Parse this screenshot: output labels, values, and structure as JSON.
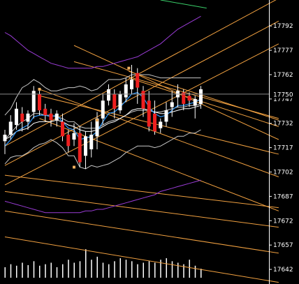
{
  "colors": {
    "background": "#000000",
    "bull_body": "#ffffff",
    "bear_body": "#ee1f1f",
    "wick": "#ffffff",
    "fib_channel": "#f0a040",
    "bollinger": "#c8c8c8",
    "ema_fast": "#2f9bff",
    "ema_slow": "#ffffff",
    "envelope": "#9a3cd6",
    "envelope_top": "#3ad06a",
    "volume": "#ffffff",
    "axis_text": "#ffffff",
    "price_line": "#8a8a8a",
    "anchor_marker": "#f0b060"
  },
  "chart_data": {
    "type": "candlestick",
    "title": "",
    "xlabel": "",
    "ylabel": "",
    "ylim": [
      17636,
      17808
    ],
    "y_ticks": [
      17792,
      17777,
      17762,
      17747,
      17732,
      17717,
      17702,
      17687,
      17672,
      17657,
      17642
    ],
    "current_price": 17750,
    "grid": false,
    "candles": [
      {
        "o": 17721,
        "h": 17728,
        "l": 17713,
        "c": 17725
      },
      {
        "o": 17725,
        "h": 17737,
        "l": 17722,
        "c": 17733
      },
      {
        "o": 17731,
        "h": 17745,
        "l": 17728,
        "c": 17741
      },
      {
        "o": 17738,
        "h": 17742,
        "l": 17727,
        "c": 17733
      },
      {
        "o": 17733,
        "h": 17740,
        "l": 17728,
        "c": 17738
      },
      {
        "o": 17739,
        "h": 17755,
        "l": 17735,
        "c": 17752
      },
      {
        "o": 17750,
        "h": 17752,
        "l": 17737,
        "c": 17740
      },
      {
        "o": 17741,
        "h": 17744,
        "l": 17733,
        "c": 17737
      },
      {
        "o": 17738,
        "h": 17741,
        "l": 17730,
        "c": 17734
      },
      {
        "o": 17734,
        "h": 17740,
        "l": 17730,
        "c": 17738
      },
      {
        "o": 17733,
        "h": 17738,
        "l": 17721,
        "c": 17724
      },
      {
        "o": 17725,
        "h": 17728,
        "l": 17714,
        "c": 17718
      },
      {
        "o": 17722,
        "h": 17732,
        "l": 17718,
        "c": 17726
      },
      {
        "o": 17726,
        "h": 17730,
        "l": 17705,
        "c": 17708
      },
      {
        "o": 17712,
        "h": 17727,
        "l": 17704,
        "c": 17724
      },
      {
        "o": 17716,
        "h": 17733,
        "l": 17711,
        "c": 17725
      },
      {
        "o": 17724,
        "h": 17739,
        "l": 17716,
        "c": 17735
      },
      {
        "o": 17735,
        "h": 17750,
        "l": 17731,
        "c": 17746
      },
      {
        "o": 17746,
        "h": 17756,
        "l": 17743,
        "c": 17753
      },
      {
        "o": 17750,
        "h": 17753,
        "l": 17735,
        "c": 17741
      },
      {
        "o": 17740,
        "h": 17752,
        "l": 17738,
        "c": 17750
      },
      {
        "o": 17748,
        "h": 17760,
        "l": 17745,
        "c": 17756
      },
      {
        "o": 17753,
        "h": 17768,
        "l": 17750,
        "c": 17759
      },
      {
        "o": 17763,
        "h": 17766,
        "l": 17744,
        "c": 17754
      },
      {
        "o": 17752,
        "h": 17755,
        "l": 17736,
        "c": 17741
      },
      {
        "o": 17746,
        "h": 17752,
        "l": 17727,
        "c": 17730
      },
      {
        "o": 17738,
        "h": 17746,
        "l": 17725,
        "c": 17727
      },
      {
        "o": 17729,
        "h": 17735,
        "l": 17726,
        "c": 17733
      },
      {
        "o": 17733,
        "h": 17745,
        "l": 17730,
        "c": 17740
      },
      {
        "o": 17742,
        "h": 17752,
        "l": 17736,
        "c": 17745
      },
      {
        "o": 17748,
        "h": 17756,
        "l": 17742,
        "c": 17752
      },
      {
        "o": 17751,
        "h": 17753,
        "l": 17740,
        "c": 17744
      },
      {
        "o": 17749,
        "h": 17751,
        "l": 17742,
        "c": 17746
      },
      {
        "o": 17743,
        "h": 17749,
        "l": 17735,
        "c": 17747
      },
      {
        "o": 17744,
        "h": 17755,
        "l": 17741,
        "c": 17753
      }
    ],
    "volume": [
      0.35,
      0.45,
      0.4,
      0.5,
      0.42,
      0.55,
      0.4,
      0.45,
      0.5,
      0.35,
      0.45,
      0.6,
      0.5,
      0.55,
      0.95,
      0.6,
      0.7,
      0.5,
      0.45,
      0.55,
      0.65,
      0.6,
      0.55,
      0.45,
      0.5,
      0.55,
      0.5,
      0.6,
      0.65,
      0.55,
      0.5,
      0.45,
      0.6,
      0.4,
      0.3
    ],
    "bollinger_upper": [
      17737,
      17741,
      17748,
      17754,
      17756,
      17759,
      17757,
      17754,
      17752,
      17752,
      17753,
      17754,
      17754,
      17755,
      17754,
      17752,
      17753,
      17756,
      17759,
      17759,
      17759,
      17760,
      17762,
      17762,
      17762,
      17762,
      17761,
      17760,
      17760,
      17760,
      17760,
      17760,
      17760,
      17760,
      17760
    ],
    "bollinger_mid": [
      17722,
      17726,
      17730,
      17733,
      17735,
      17738,
      17738,
      17737,
      17737,
      17736,
      17735,
      17733,
      17733,
      17730,
      17729,
      17729,
      17729,
      17731,
      17733,
      17734,
      17735,
      17737,
      17739,
      17740,
      17740,
      17740,
      17739,
      17739,
      17740,
      17741,
      17742,
      17742,
      17743,
      17743,
      17744
    ],
    "bollinger_lower": [
      17707,
      17711,
      17712,
      17712,
      17714,
      17717,
      17719,
      17720,
      17722,
      17720,
      17717,
      17712,
      17712,
      17705,
      17704,
      17706,
      17705,
      17706,
      17707,
      17709,
      17711,
      17714,
      17716,
      17718,
      17718,
      17718,
      17717,
      17718,
      17720,
      17722,
      17724,
      17724,
      17726,
      17726,
      17728
    ],
    "ema_fast": [
      17718,
      17722,
      17727,
      17729,
      17731,
      17736,
      17737,
      17737,
      17736,
      17737,
      17733,
      17729,
      17728,
      17722,
      17723,
      17724,
      17727,
      17733,
      17738,
      17739,
      17742,
      17746,
      17750,
      17751,
      17748,
      17742,
      17738,
      17736,
      17737,
      17740,
      17743,
      17743,
      17744,
      17745,
      17747
    ],
    "ema_slow": [
      17722,
      17724,
      17727,
      17728,
      17729,
      17732,
      17733,
      17733,
      17733,
      17734,
      17733,
      17731,
      17730,
      17728,
      17727,
      17727,
      17728,
      17730,
      17732,
      17733,
      17735,
      17737,
      17740,
      17741,
      17741,
      17740,
      17739,
      17738,
      17738,
      17739,
      17740,
      17741,
      17741,
      17742,
      17743
    ],
    "envelope_upper": [
      17788,
      17786,
      17783,
      17780,
      17777,
      17775,
      17773,
      17771,
      17769,
      17768,
      17767,
      17766,
      17766,
      17766,
      17766,
      17766,
      17767,
      17767,
      17768,
      17769,
      17770,
      17771,
      17772,
      17773,
      17775,
      17777,
      17779,
      17781,
      17784,
      17787,
      17790,
      17792,
      17794,
      17796,
      17798
    ],
    "envelope_lower": [
      17684,
      17683,
      17682,
      17681,
      17680,
      17679,
      17678,
      17677,
      17677,
      17677,
      17677,
      17677,
      17677,
      17677,
      17678,
      17678,
      17679,
      17679,
      17680,
      17681,
      17682,
      17683,
      17684,
      17685,
      17686,
      17687,
      17688,
      17690,
      17691,
      17692,
      17693,
      17694,
      17695,
      17696,
      17697
    ]
  }
}
